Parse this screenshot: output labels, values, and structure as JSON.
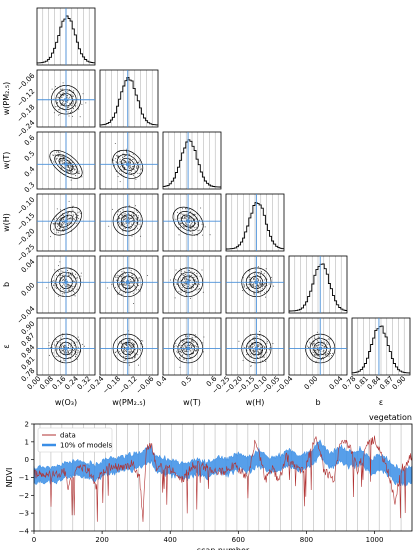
{
  "chart_data": [
    {
      "type": "corner",
      "parameters": [
        {
          "label": "w(O₃)",
          "ticks": [
            "0.00",
            "0.08",
            "0.16",
            "0.24",
            "0.32"
          ],
          "range": [
            0.0,
            0.32
          ],
          "truth": 0.16,
          "dist": "gaussian",
          "yticks": []
        },
        {
          "label": "w(PM₂.₅)",
          "ticks": [
            "−0.24",
            "−0.18",
            "−0.12",
            "−0.06"
          ],
          "range": [
            -0.27,
            -0.04
          ],
          "truth": -0.16,
          "yticks": [
            "−0.06",
            "−0.12",
            "−0.18",
            "−0.24"
          ]
        },
        {
          "label": "w(T)",
          "ticks": [
            "0.4",
            "0.5",
            "0.6"
          ],
          "range": [
            0.3,
            0.67
          ],
          "truth": 0.46,
          "yticks": [
            "0.6",
            "0.5",
            "0.4",
            "0.3"
          ]
        },
        {
          "label": "w(H)",
          "ticks": [
            "−0.25",
            "−0.20",
            "−0.15",
            "−0.10",
            "−0.05"
          ],
          "range": [
            -0.26,
            -0.05
          ],
          "truth": -0.15,
          "yticks": [
            "−0.10",
            "−0.15",
            "−0.20",
            "−0.25"
          ]
        },
        {
          "label": "b",
          "ticks": [
            "−0.04",
            "0.00",
            "0.04"
          ],
          "range": [
            -0.07,
            0.06
          ],
          "truth": 0.0,
          "yticks": [
            "0.04",
            "0.00",
            "−0.04"
          ]
        },
        {
          "label": "ε",
          "ticks": [
            "0.78",
            "0.81",
            "0.84",
            "0.87",
            "0.90"
          ],
          "range": [
            0.78,
            0.92
          ],
          "truth": 0.845,
          "yticks": [
            "0.90",
            "0.87",
            "0.84",
            "0.81",
            "0.78"
          ]
        }
      ],
      "correlations": [
        {
          "pair": [
            "w(O₃)",
            "w(T)"
          ],
          "rho": -0.75
        },
        {
          "pair": [
            "w(O₃)",
            "w(H)"
          ],
          "rho": 0.55
        },
        {
          "pair": [
            "w(PM₂.₅)",
            "w(T)"
          ],
          "rho": -0.3
        },
        {
          "pair": [
            "w(T)",
            "w(H)"
          ],
          "rho": -0.35
        }
      ]
    },
    {
      "type": "line",
      "title": "vegetation",
      "xlabel": "scan number",
      "ylabel": "NDVI",
      "xlim": [
        0,
        1110
      ],
      "ylim": [
        -4,
        2
      ],
      "xticks": [
        "0",
        "200",
        "400",
        "600",
        "800",
        "1000"
      ],
      "yticks": [
        "2",
        "1",
        "0",
        "−1",
        "−2",
        "−3",
        "−4"
      ],
      "legend": {
        "position": "upper-left",
        "entries": [
          "data",
          "10% of models"
        ]
      },
      "series": [
        {
          "name": "data",
          "color": "#b03030",
          "x": [
            0,
            30,
            60,
            90,
            100,
            115,
            130,
            150,
            170,
            180,
            200,
            230,
            260,
            290,
            310,
            320,
            330,
            345,
            360,
            390,
            400,
            430,
            470,
            500,
            540,
            560,
            580,
            600,
            630,
            650,
            680,
            700,
            720,
            740,
            760,
            790,
            830,
            850,
            880,
            900,
            930,
            950,
            980,
            1000,
            1040,
            1060,
            1080,
            1110
          ],
          "y": [
            -0.8,
            -0.9,
            -0.8,
            -0.7,
            -1.5,
            -0.9,
            -0.3,
            -0.5,
            -0.8,
            -1.6,
            -0.6,
            -0.4,
            -0.5,
            -0.2,
            -1.0,
            -3.3,
            0.5,
            0.9,
            -0.5,
            -0.3,
            -0.5,
            -1.2,
            -0.3,
            -0.4,
            -0.6,
            -0.7,
            -0.3,
            -0.5,
            -1.0,
            1.2,
            -1.1,
            -0.5,
            -1.2,
            0.2,
            -0.3,
            -0.6,
            1.3,
            -0.5,
            -1.2,
            1.1,
            0.7,
            -0.6,
            0.8,
            1.2,
            -0.7,
            -2.3,
            -0.5,
            0.2
          ]
        },
        {
          "name": "10% of models",
          "color": "#3a8ee6",
          "x": [
            0,
            30,
            60,
            90,
            120,
            150,
            180,
            210,
            240,
            270,
            300,
            330,
            345,
            360,
            390,
            420,
            450,
            480,
            510,
            540,
            570,
            600,
            630,
            660,
            690,
            720,
            750,
            780,
            810,
            840,
            870,
            900,
            930,
            960,
            990,
            1020,
            1050,
            1080,
            1110
          ],
          "y": [
            -0.9,
            -0.8,
            -0.9,
            -0.6,
            -0.5,
            -0.6,
            -0.7,
            -0.4,
            -0.3,
            -0.2,
            -0.1,
            0.2,
            0.3,
            -0.3,
            -0.4,
            -0.5,
            -0.6,
            -0.4,
            -0.6,
            -0.3,
            -0.4,
            -0.1,
            -0.3,
            0.1,
            -0.3,
            -0.2,
            0.1,
            -0.2,
            0.0,
            0.6,
            -0.1,
            0.3,
            0.0,
            0.2,
            -0.4,
            -0.1,
            -0.7,
            -1.0,
            -0.8
          ]
        }
      ]
    }
  ]
}
